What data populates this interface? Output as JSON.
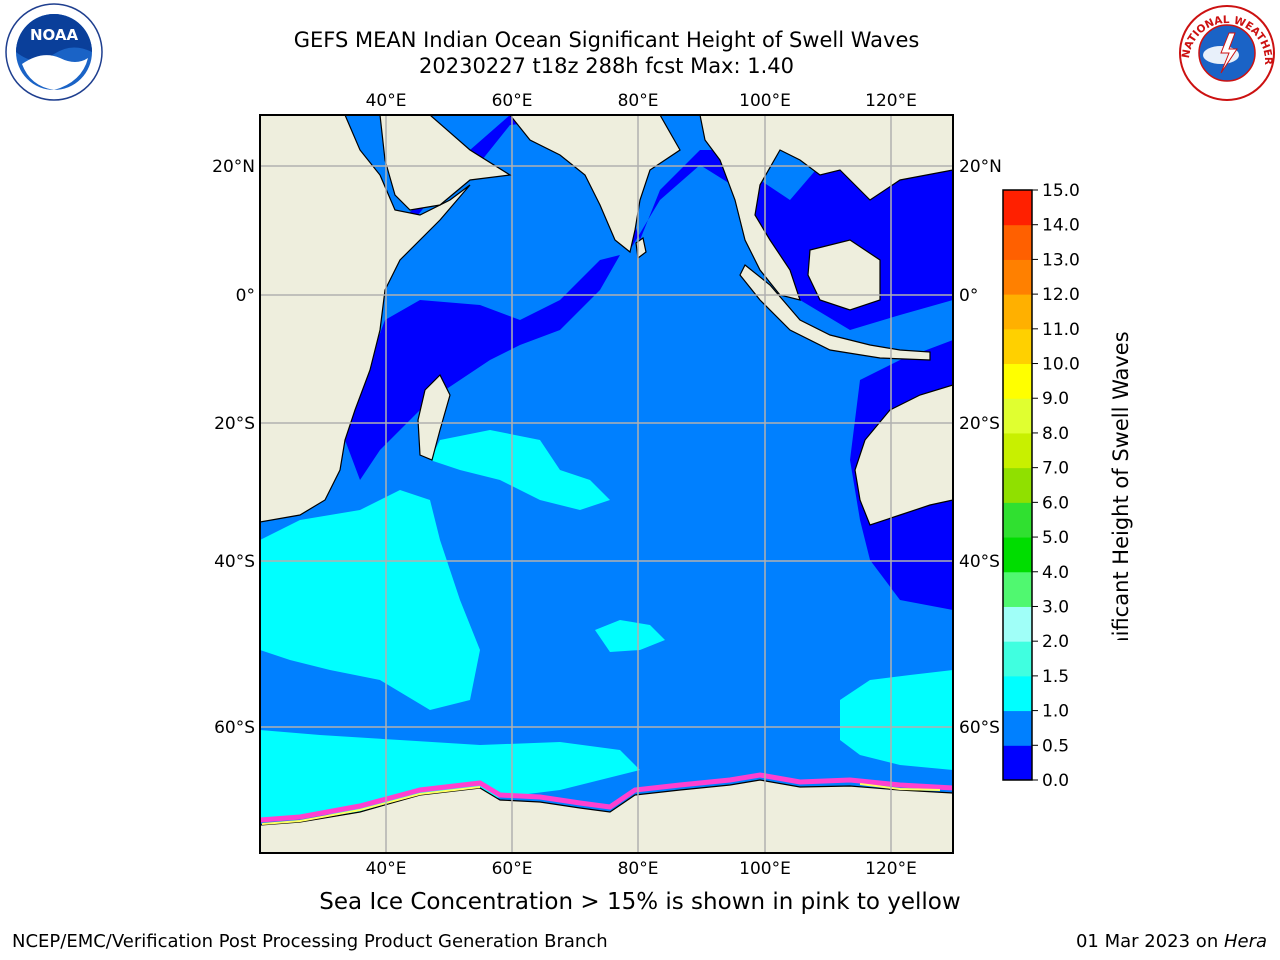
{
  "title": {
    "line1": "GEFS MEAN Indian Ocean Significant Height of Swell Waves",
    "line2": "20230227 t18z 288h fcst   Max: 1.40"
  },
  "axes": {
    "lon_labels": [
      "40°E",
      "60°E",
      "80°E",
      "100°E",
      "120°E"
    ],
    "lat_labels": [
      "20°N",
      "0°",
      "20°S",
      "40°S",
      "60°S"
    ]
  },
  "colorbar": {
    "label": "Significant Height of Swell Waves [m]",
    "ticks": [
      "0.0",
      "0.5",
      "1.0",
      "1.5",
      "2.0",
      "3.0",
      "4.0",
      "5.0",
      "6.0",
      "7.0",
      "8.0",
      "9.0",
      "10.0",
      "11.0",
      "12.0",
      "13.0",
      "14.0",
      "15.0"
    ],
    "colors": [
      "#0000ff",
      "#0080ff",
      "#00ffff",
      "#40ffe0",
      "#a0fff8",
      "#50f870",
      "#00dd00",
      "#30e030",
      "#90e000",
      "#c8f000",
      "#e0ff30",
      "#ffff00",
      "#ffd000",
      "#ffb000",
      "#ff8000",
      "#ff6000",
      "#ff2000"
    ]
  },
  "map": {
    "land_color": "#eeeedd",
    "ocean_colors": {
      "deep": "#0000ff",
      "mid": "#0080ff",
      "light": "#00ffff"
    },
    "ice_color": "#ff40d0"
  },
  "logos": {
    "noaa_text": "NOAA",
    "nws_text": "NATIONAL WEATHER SERVICE"
  },
  "footer": {
    "ice_note": "Sea Ice Concentration > 15% is shown in pink to yellow",
    "credit": "NCEP/EMC/Verification Post Processing Product Generation Branch",
    "date": "01 Mar 2023 on ",
    "host": "Hera"
  }
}
